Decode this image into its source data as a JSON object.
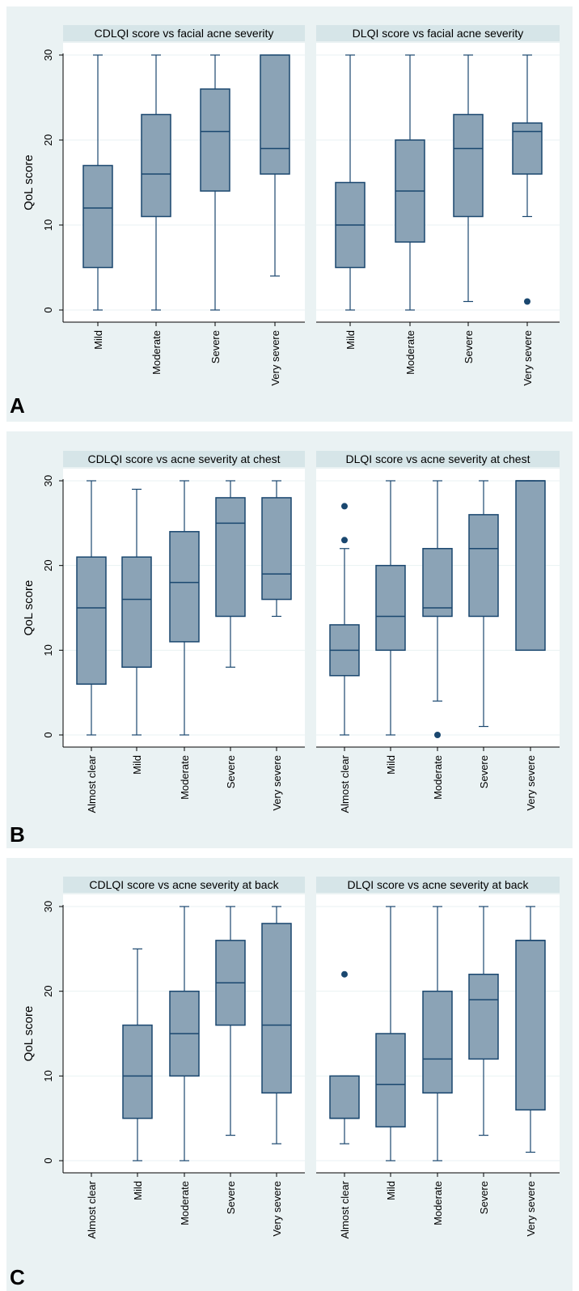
{
  "chart_data": [
    {
      "type": "box",
      "panel_label": "A",
      "ylabel": "QoL score",
      "ylim": [
        0,
        30
      ],
      "yticks": [
        0,
        10,
        20,
        30
      ],
      "subplots": [
        {
          "title": "CDLQI score vs facial acne severity",
          "categories": [
            "Mild",
            "Moderate",
            "Severe",
            "Very severe"
          ],
          "boxes": [
            {
              "min": 0,
              "q1": 5,
              "median": 12,
              "q3": 17,
              "max": 30,
              "outliers": []
            },
            {
              "min": 0,
              "q1": 11,
              "median": 16,
              "q3": 23,
              "max": 30,
              "outliers": []
            },
            {
              "min": 0,
              "q1": 14,
              "median": 21,
              "q3": 26,
              "max": 30,
              "outliers": []
            },
            {
              "min": 4,
              "q1": 16,
              "median": 19,
              "q3": 30,
              "max": 30,
              "outliers": []
            }
          ]
        },
        {
          "title": "DLQI score vs facial acne severity",
          "categories": [
            "Mild",
            "Moderate",
            "Severe",
            "Very severe"
          ],
          "boxes": [
            {
              "min": 0,
              "q1": 5,
              "median": 10,
              "q3": 15,
              "max": 30,
              "outliers": []
            },
            {
              "min": 0,
              "q1": 8,
              "median": 14,
              "q3": 20,
              "max": 30,
              "outliers": []
            },
            {
              "min": 1,
              "q1": 11,
              "median": 19,
              "q3": 23,
              "max": 30,
              "outliers": []
            },
            {
              "min": 11,
              "q1": 16,
              "median": 21,
              "q3": 22,
              "max": 30,
              "outliers": [
                1
              ]
            }
          ]
        }
      ]
    },
    {
      "type": "box",
      "panel_label": "B",
      "ylabel": "QoL score",
      "ylim": [
        0,
        30
      ],
      "yticks": [
        0,
        10,
        20,
        30
      ],
      "subplots": [
        {
          "title": "CDLQI score vs acne severity at chest",
          "categories": [
            "Almost clear",
            "Mild",
            "Moderate",
            "Severe",
            "Very severe"
          ],
          "boxes": [
            {
              "min": 0,
              "q1": 6,
              "median": 15,
              "q3": 21,
              "max": 30,
              "outliers": []
            },
            {
              "min": 0,
              "q1": 8,
              "median": 16,
              "q3": 21,
              "max": 29,
              "outliers": []
            },
            {
              "min": 0,
              "q1": 11,
              "median": 18,
              "q3": 24,
              "max": 30,
              "outliers": []
            },
            {
              "min": 8,
              "q1": 14,
              "median": 25,
              "q3": 28,
              "max": 30,
              "outliers": []
            },
            {
              "min": 14,
              "q1": 16,
              "median": 19,
              "q3": 28,
              "max": 30,
              "outliers": []
            }
          ]
        },
        {
          "title": "DLQI score vs acne severity at chest",
          "categories": [
            "Almost clear",
            "Mild",
            "Moderate",
            "Severe",
            "Very severe"
          ],
          "boxes": [
            {
              "min": 0,
              "q1": 7,
              "median": 10,
              "q3": 13,
              "max": 22,
              "outliers": [
                23,
                27
              ]
            },
            {
              "min": 0,
              "q1": 10,
              "median": 14,
              "q3": 20,
              "max": 30,
              "outliers": []
            },
            {
              "min": 4,
              "q1": 14,
              "median": 15,
              "q3": 22,
              "max": 30,
              "outliers": [
                0
              ]
            },
            {
              "min": 1,
              "q1": 14,
              "median": 22,
              "q3": 26,
              "max": 30,
              "outliers": []
            },
            {
              "min": 10,
              "q1": 10,
              "median": 30,
              "q3": 30,
              "max": 30,
              "outliers": []
            }
          ]
        }
      ]
    },
    {
      "type": "box",
      "panel_label": "C",
      "ylabel": "QoL score",
      "ylim": [
        0,
        30
      ],
      "yticks": [
        0,
        10,
        20,
        30
      ],
      "subplots": [
        {
          "title": "CDLQI score vs acne severity at back",
          "categories": [
            "Almost clear",
            "Mild",
            "Moderate",
            "Severe",
            "Very severe"
          ],
          "boxes": [
            null,
            {
              "min": 0,
              "q1": 5,
              "median": 10,
              "q3": 16,
              "max": 25,
              "outliers": []
            },
            {
              "min": 0,
              "q1": 10,
              "median": 15,
              "q3": 20,
              "max": 30,
              "outliers": []
            },
            {
              "min": 3,
              "q1": 16,
              "median": 21,
              "q3": 26,
              "max": 30,
              "outliers": []
            },
            {
              "min": 2,
              "q1": 8,
              "median": 16,
              "q3": 28,
              "max": 30,
              "outliers": []
            }
          ]
        },
        {
          "title": "DLQI score vs acne severity at back",
          "categories": [
            "Almost clear",
            "Mild",
            "Moderate",
            "Severe",
            "Very severe"
          ],
          "boxes": [
            {
              "min": 2,
              "q1": 5,
              "median": 5,
              "q3": 10,
              "max": 10,
              "outliers": [
                22
              ]
            },
            {
              "min": 0,
              "q1": 4,
              "median": 9,
              "q3": 15,
              "max": 30,
              "outliers": []
            },
            {
              "min": 0,
              "q1": 8,
              "median": 12,
              "q3": 20,
              "max": 30,
              "outliers": []
            },
            {
              "min": 3,
              "q1": 12,
              "median": 19,
              "q3": 22,
              "max": 30,
              "outliers": []
            },
            {
              "min": 1,
              "q1": 6,
              "median": 26,
              "q3": 26,
              "max": 30,
              "outliers": []
            }
          ]
        }
      ]
    }
  ]
}
